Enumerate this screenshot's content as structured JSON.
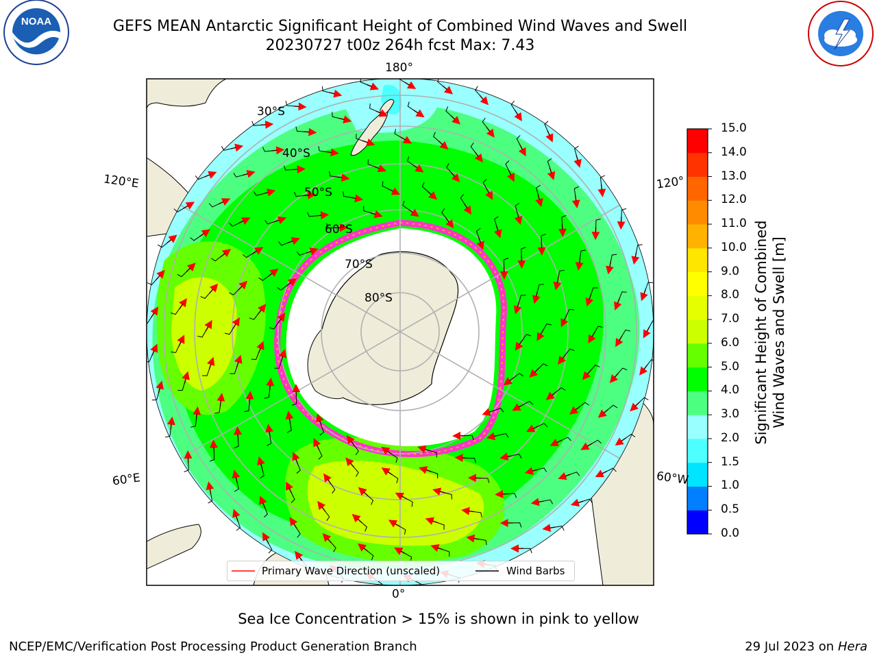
{
  "header": {
    "title_line1": "GEFS MEAN Antarctic Significant Height of Combined Wind Waves and Swell",
    "title_line2": "20230727 t00z 264h fcst   Max: 7.43"
  },
  "logos": {
    "left": {
      "name": "noaa-logo",
      "text": "NOAA",
      "ring_text": "NATIONAL OCEANIC AND ATMOSPHERIC ADMINISTRATION · U.S. DEPARTMENT OF COMMERCE"
    },
    "right": {
      "name": "nws-logo",
      "ring_text": "NATIONAL WEATHER SERVICE"
    }
  },
  "map": {
    "projection": "south-polar-stereographic",
    "longitude_labels": {
      "top": "180°",
      "bottom": "0°",
      "upper_left": "120°E",
      "lower_left": "60°E",
      "upper_right": "120°",
      "lower_right": "60°W"
    },
    "latitude_labels": [
      "30°S",
      "40°S",
      "50°S",
      "60°S",
      "70°S",
      "80°S"
    ],
    "colors": {
      "land": "#efecda",
      "sea_ice_free": "#ffffff",
      "ice_edge": "#ff33cc",
      "grid": "#b0b0b0"
    }
  },
  "colorbar": {
    "label": "Significant Height of Combined Wind Waves and Swell [m]",
    "label_line1": "Significant Height of Combined",
    "label_line2": "Wind Waves and Swell [m]",
    "ticks": [
      "0.0",
      "0.5",
      "1.0",
      "1.5",
      "2.0",
      "3.0",
      "4.0",
      "5.0",
      "6.0",
      "7.0",
      "8.0",
      "9.0",
      "10.0",
      "11.0",
      "12.0",
      "13.0",
      "14.0",
      "15.0"
    ],
    "colors": [
      "#0000ff",
      "#0080ff",
      "#00e5ff",
      "#4dffff",
      "#99ffff",
      "#4dff80",
      "#00ff00",
      "#66ff00",
      "#ccff00",
      "#e6ff00",
      "#ffff00",
      "#ffe600",
      "#ffb300",
      "#ff8c00",
      "#ff6600",
      "#ff3300",
      "#ff0000"
    ]
  },
  "legend": {
    "wave_direction": "Primary Wave Direction (unscaled)",
    "wind_barbs": "Wind Barbs"
  },
  "footer": {
    "subtitle": "Sea Ice Concentration > 15% is shown in pink to yellow",
    "left": "NCEP/EMC/Verification Post Processing Product Generation Branch",
    "right_date": "29 Jul 2023 on",
    "right_host": "Hera"
  }
}
